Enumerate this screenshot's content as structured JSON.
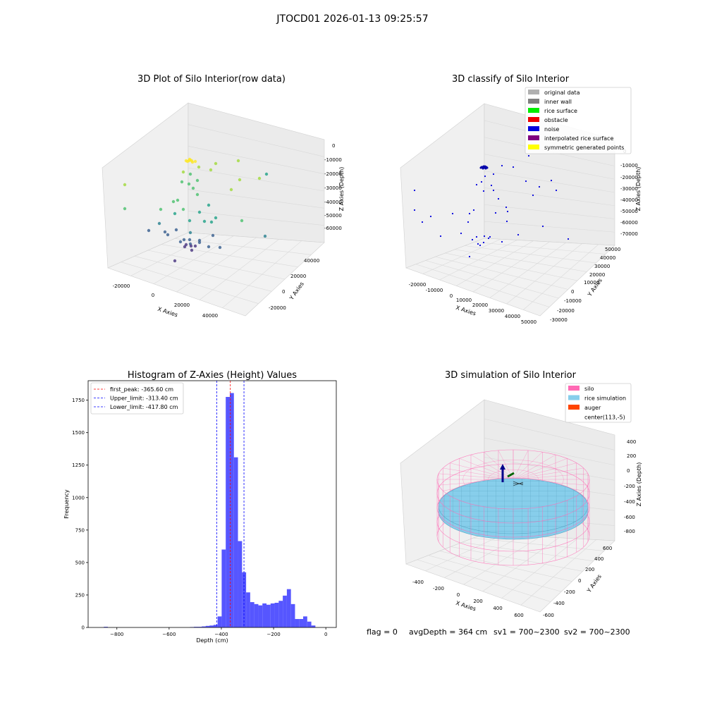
{
  "figure_title": "JTOCD01 2026-01-13 09:25:57",
  "footer": {
    "flag": "flag = 0",
    "avg_depth": "avgDepth = 364 cm",
    "sv1": "sv1 = 700~2300",
    "sv2": "sv2 = 700~2300"
  },
  "chart_data": [
    {
      "type": "scatter",
      "title": "3D Plot of Silo Interior(row data)",
      "xlabel": "X Axies",
      "ylabel": "Y Axies",
      "zlabel": "Z Axies (Depth)",
      "x_ticks": [
        "-20000",
        "0",
        "20000",
        "40000"
      ],
      "y_ticks": [
        "-20000",
        "0",
        "20000",
        "40000"
      ],
      "z_ticks": [
        "0",
        "-10000",
        "-20000",
        "-30000",
        "-40000",
        "-50000",
        "-60000"
      ],
      "colormap": "viridis",
      "grid": true
    },
    {
      "type": "scatter",
      "title": "3D classify of Silo Interior",
      "xlabel": "X Axies",
      "ylabel": "Y Axies",
      "zlabel": "Z Axies (Depth)",
      "x_ticks": [
        "-20000",
        "-10000",
        "0",
        "10000",
        "20000",
        "30000",
        "40000",
        "50000"
      ],
      "y_ticks": [
        "-30000",
        "-20000",
        "-10000",
        "0",
        "10000",
        "20000",
        "30000",
        "40000",
        "50000"
      ],
      "z_ticks": [
        "0",
        "-10000",
        "-20000",
        "-30000",
        "-40000",
        "-50000",
        "-60000",
        "-70000"
      ],
      "legend_position": "top-right",
      "legend": [
        {
          "label": "original data",
          "color": "#b0b0b0"
        },
        {
          "label": "inner wall",
          "color": "#808080"
        },
        {
          "label": "rice surface",
          "color": "#00ee00"
        },
        {
          "label": "obstacle",
          "color": "#ee0000"
        },
        {
          "label": "noise",
          "color": "#0000dd"
        },
        {
          "label": "interpolated rice surface",
          "color": "#800080"
        },
        {
          "label": "symmetric generated points",
          "color": "#ffff00"
        }
      ],
      "grid": true
    },
    {
      "type": "bar",
      "title": "Histogram of Z-Axies (Height) Values",
      "xlabel": "Depth (cm)",
      "ylabel": "Frequency",
      "xlim": [
        -910,
        40
      ],
      "ylim": [
        0,
        1900
      ],
      "x_ticks": [
        -800,
        -600,
        -400,
        -200,
        0
      ],
      "y_ticks": [
        0,
        250,
        500,
        750,
        1000,
        1250,
        1500,
        1750
      ],
      "bin_width": 15.6,
      "bins": [
        {
          "x": -850,
          "count": 5
        },
        {
          "x": -520,
          "count": 3
        },
        {
          "x": -505,
          "count": 5
        },
        {
          "x": -490,
          "count": 5
        },
        {
          "x": -475,
          "count": 8
        },
        {
          "x": -460,
          "count": 12
        },
        {
          "x": -445,
          "count": 15
        },
        {
          "x": -430,
          "count": 20
        },
        {
          "x": -414.4,
          "count": 85
        },
        {
          "x": -398.8,
          "count": 600
        },
        {
          "x": -383.2,
          "count": 1775
        },
        {
          "x": -367.6,
          "count": 1805
        },
        {
          "x": -352,
          "count": 1310
        },
        {
          "x": -336.4,
          "count": 665
        },
        {
          "x": -320.8,
          "count": 425
        },
        {
          "x": -305.2,
          "count": 270
        },
        {
          "x": -289.6,
          "count": 195
        },
        {
          "x": -274,
          "count": 180
        },
        {
          "x": -258.4,
          "count": 170
        },
        {
          "x": -242.8,
          "count": 185
        },
        {
          "x": -227.2,
          "count": 175
        },
        {
          "x": -211.6,
          "count": 185
        },
        {
          "x": -196,
          "count": 190
        },
        {
          "x": -180.4,
          "count": 205
        },
        {
          "x": -164.8,
          "count": 245
        },
        {
          "x": -149.2,
          "count": 295
        },
        {
          "x": -133.6,
          "count": 180
        },
        {
          "x": -118,
          "count": 65
        },
        {
          "x": -102.4,
          "count": 65
        },
        {
          "x": -86.8,
          "count": 85
        },
        {
          "x": -71.2,
          "count": 45
        },
        {
          "x": -55.6,
          "count": 15
        }
      ],
      "color": "#4d4dff",
      "vlines": [
        {
          "label": "first_peak: -365.60 cm",
          "x": -365.6,
          "color": "#ff0000"
        },
        {
          "label": "Upper_limit: -313.40 cm",
          "x": -313.4,
          "color": "#0000ff"
        },
        {
          "label": "Lower_limit: -417.80 cm",
          "x": -417.8,
          "color": "#0000ff"
        }
      ],
      "legend_position": "top-left"
    },
    {
      "type": "scatter",
      "title": "3D simulation of Silo Interior",
      "xlabel": "X Axies",
      "ylabel": "Y Axies",
      "zlabel": "Z Axies (Depth)",
      "x_ticks": [
        "-400",
        "-200",
        "0",
        "200",
        "400",
        "600"
      ],
      "y_ticks": [
        "-600",
        "-400",
        "-200",
        "0",
        "200",
        "400",
        "600"
      ],
      "z_ticks": [
        "400",
        "200",
        "0",
        "-200",
        "-400",
        "-600",
        "-800"
      ],
      "legend_position": "top-right",
      "legend": [
        {
          "label": "silo",
          "color": "#ff69b4"
        },
        {
          "label": "rice simulation",
          "color": "#87ceeb"
        },
        {
          "label": "auger",
          "color": "#ff4500"
        },
        {
          "label": "center(113,-5)",
          "color": ""
        }
      ],
      "grid": true
    }
  ]
}
